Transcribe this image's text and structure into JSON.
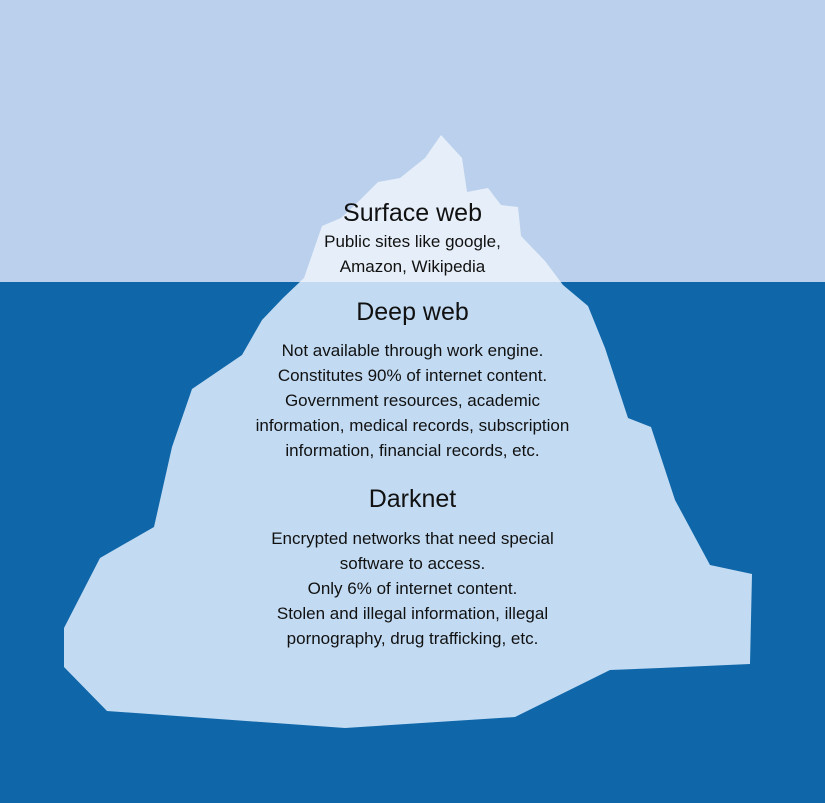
{
  "colors": {
    "sky": "#bbd0ec",
    "sea": "#0f67a9",
    "ice_above": "#e6eff9",
    "ice_below": "#c2dbf3"
  },
  "layers": [
    {
      "title": "Surface web",
      "lines": [
        "Public sites like google,",
        "Amazon, Wikipedia"
      ]
    },
    {
      "title": "Deep web",
      "lines": [
        "Not available through work engine.",
        "Constitutes 90% of internet content.",
        "Government resources, academic",
        "information, medical records, subscription",
        "information, financial records, etc."
      ]
    },
    {
      "title": "Darknet",
      "lines": [
        "Encrypted networks that need special",
        "software to access.",
        "Only 6% of internet content.",
        "Stolen and illegal information, illegal",
        "pornography, drug trafficking, etc."
      ]
    }
  ]
}
